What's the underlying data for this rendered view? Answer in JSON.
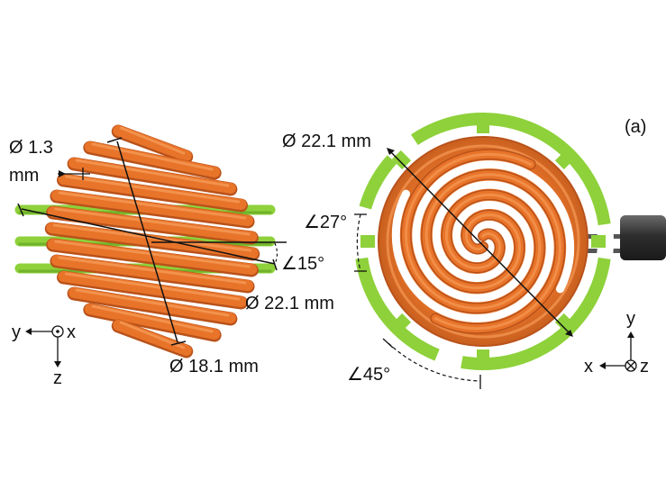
{
  "panel_label": "(a)",
  "side_view": {
    "wire_diameter_label_line1": "Ø 1.3",
    "wire_diameter_label_line2": "mm",
    "outer_diameter_label": "Ø 22.1 mm",
    "inner_diameter_label": "Ø 18.1 mm",
    "tilt_angle_label": "∠15°",
    "axis_y": "y",
    "axis_x": "x",
    "axis_z": "z"
  },
  "top_view": {
    "diameter_label": "Ø 22.1 mm",
    "angle_small_label": "∠27°",
    "angle_large_label": "∠45°",
    "axis_x": "x",
    "axis_y": "y",
    "axis_z": "z"
  },
  "colors": {
    "coil": "#e8742a",
    "coil_dark": "#b9521a",
    "coil_light": "#f59a56",
    "frame": "#8ed13a",
    "frame_dark": "#5e9e22",
    "cable": "#3a3a3a"
  }
}
